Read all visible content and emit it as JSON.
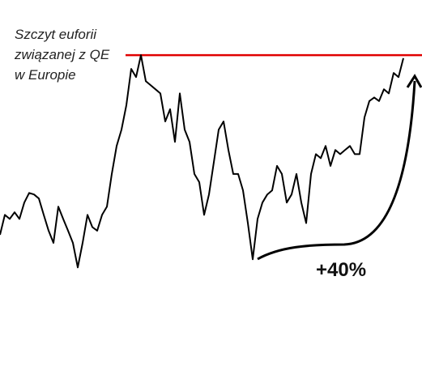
{
  "chart_data": {
    "type": "line",
    "annotation": [
      "Szczyt euforii",
      "związanej z QE",
      "w Europie"
    ],
    "change_label": "+40%",
    "color": "#000000",
    "reference_line": 140,
    "reference_color": "#e00000",
    "ylim": [
      78.3,
      150.8
    ],
    "values": [
      104.8,
      108.7,
      107.9,
      109.2,
      107.9,
      111.1,
      113.0,
      112.7,
      111.9,
      108.7,
      105.6,
      103.2,
      110.3,
      107.9,
      105.6,
      103.2,
      98.4,
      103.2,
      108.7,
      106.3,
      105.6,
      108.7,
      110.3,
      116.7,
      122.2,
      125.4,
      130.2,
      137.3,
      135.7,
      140,
      134.9,
      134.1,
      133.3,
      132.5,
      127.0,
      129.4,
      123.0,
      132.5,
      125.4,
      123.0,
      116.7,
      115.1,
      108.7,
      112.7,
      119.0,
      125.4,
      127.0,
      121.4,
      116.7,
      116.7,
      113.5,
      107.1,
      100,
      107.9,
      111.1,
      112.7,
      113.5,
      118.3,
      116.7,
      111.1,
      112.7,
      116.7,
      111.1,
      107.1,
      116.7,
      120.6,
      119.8,
      122.2,
      118.3,
      121.4,
      120.6,
      121.4,
      122.2,
      120.6,
      120.6,
      127.8,
      131.0,
      131.7,
      131.0,
      133.3,
      132.5,
      136.5,
      135.7,
      139.4
    ]
  }
}
